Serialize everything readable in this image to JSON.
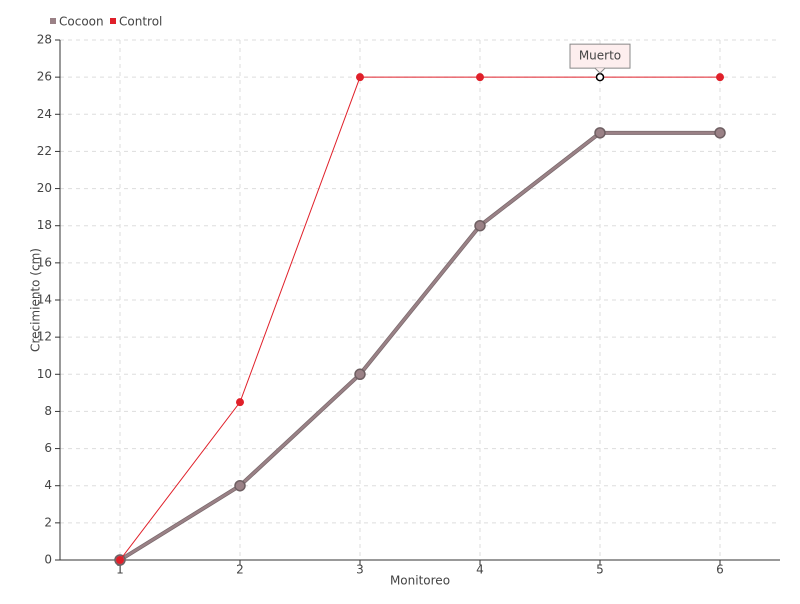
{
  "chart_data": {
    "type": "line",
    "x_label": "Monitoreo",
    "y_label": "Crecimiento (cm)",
    "x": [
      1,
      2,
      3,
      4,
      5,
      6
    ],
    "series": [
      {
        "name": "Cocoon",
        "color": "#9a8186",
        "values": [
          0,
          4,
          10,
          18,
          23,
          23
        ]
      },
      {
        "name": "Control",
        "color": "#e0202a",
        "values": [
          0,
          8.5,
          26,
          26,
          26,
          26
        ]
      }
    ],
    "annotations": [
      {
        "label": "Muerto",
        "x": 5,
        "y": 26
      }
    ],
    "xlim": [
      0.5,
      6.5
    ],
    "xticks": [
      1,
      2,
      3,
      4,
      5,
      6
    ],
    "ylim": [
      0,
      28
    ],
    "yticks": [
      0,
      2,
      4,
      6,
      8,
      10,
      12,
      14,
      16,
      18,
      20,
      22,
      24,
      26,
      28
    ],
    "grid": true,
    "legend": "top-left"
  }
}
